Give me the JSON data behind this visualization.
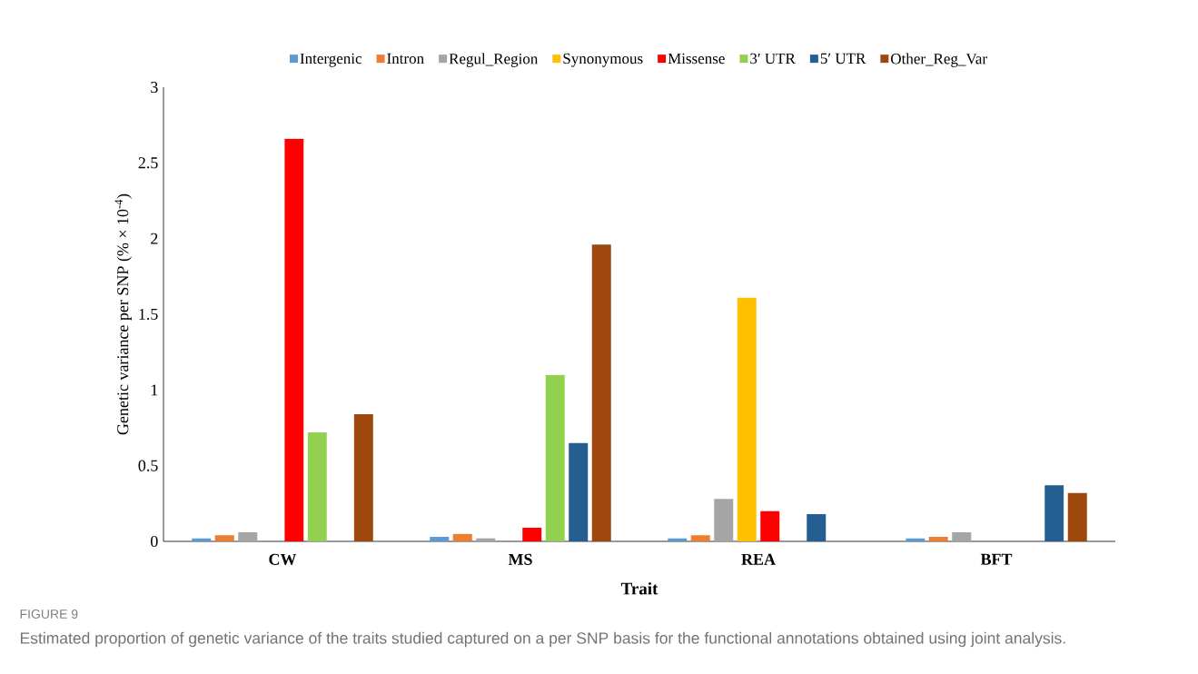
{
  "chart_data": {
    "type": "bar",
    "xlabel": "Trait",
    "ylabel": "Genetic variance per SNP (% × 10$^{-4}$)",
    "categories": [
      "CW",
      "MS",
      "REA",
      "BFT"
    ],
    "series": [
      {
        "name": "Intergenic",
        "color": "#5b9bd5",
        "values": [
          0.02,
          0.03,
          0.02,
          0.02
        ]
      },
      {
        "name": "Intron",
        "color": "#ed7d31",
        "values": [
          0.04,
          0.05,
          0.04,
          0.03
        ]
      },
      {
        "name": "Regul_Region",
        "color": "#a5a5a5",
        "values": [
          0.06,
          0.02,
          0.28,
          0.06
        ]
      },
      {
        "name": "Synonymous",
        "color": "#ffc000",
        "values": [
          null,
          null,
          1.61,
          null
        ]
      },
      {
        "name": "Missense",
        "color": "#ff0000",
        "values": [
          2.66,
          0.09,
          0.2,
          null
        ]
      },
      {
        "name": "3′ UTR",
        "color": "#92d050",
        "values": [
          0.72,
          1.1,
          null,
          null
        ]
      },
      {
        "name": "5′ UTR",
        "color": "#255e91",
        "values": [
          null,
          0.65,
          0.18,
          0.37
        ]
      },
      {
        "name": "Other_Reg_Var",
        "color": "#9e480e",
        "values": [
          0.84,
          1.96,
          null,
          0.32
        ]
      }
    ],
    "ylim": [
      0,
      3
    ],
    "yticks": [
      0,
      0.5,
      1,
      1.5,
      2,
      2.5,
      3
    ],
    "grid": false,
    "legend": "top",
    "annotations": [
      "FIGURE 9",
      "Estimated proportion of genetic variance of the traits studied captured on a per SNP basis for the functional annotations obtained using joint analysis."
    ]
  }
}
